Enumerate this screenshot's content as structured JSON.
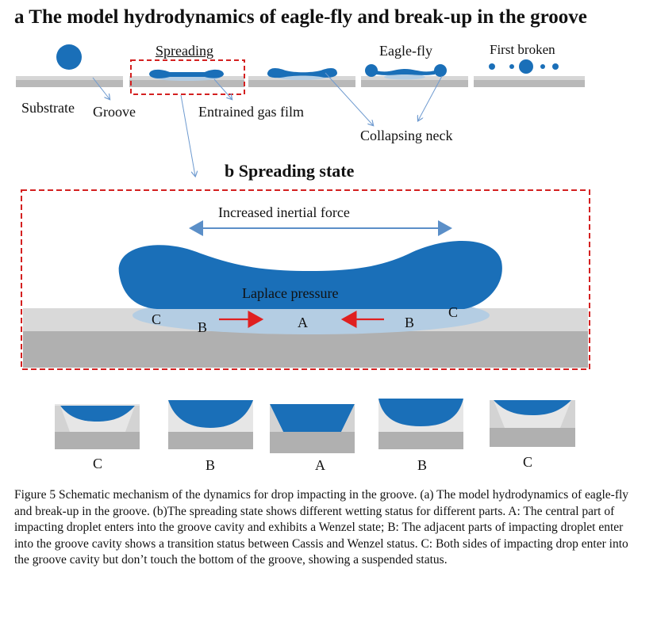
{
  "panel_a": {
    "title": "a  The model hydrodynamics of eagle-fly and break-up in the groove",
    "labels": {
      "spreading": "Spreading",
      "eagle_fly": "Eagle-fly",
      "first_broken": "First broken",
      "substrate": "Substrate",
      "groove": "Groove",
      "entrained_gas_film": "Entrained gas film",
      "collapsing_neck": "Collapsing neck"
    }
  },
  "panel_b": {
    "title": "b  Spreading state",
    "labels": {
      "increased_inertial_force": "Increased inertial force",
      "laplace_pressure": "Laplace pressure",
      "c_left": "C",
      "b_left": "B",
      "a_center": "A",
      "b_right": "B",
      "c_right": "C"
    }
  },
  "states_row": {
    "labels": [
      "C",
      "B",
      "A",
      "B",
      "C"
    ]
  },
  "caption": "Figure 5 Schematic mechanism of the dynamics for drop impacting in the groove. (a)  The model hydrodynamics of eagle-fly and break-up in the groove. (b)The spreading state shows different wetting status for different parts.  A: The central part of impacting droplet enters into the groove cavity and exhibits a Wenzel state; B: The adjacent parts of impacting droplet enter into the groove cavity shows a transition status  between Cassis and Wenzel status.  C: Both sides of impacting drop enter into the groove cavity but don’t touch the bottom of the groove, showing a suspended status.",
  "colors": {
    "drop_blue": "#1a6fb8",
    "gas_light_blue": "#b4cde3",
    "substrate_light": "#d9d9d9",
    "substrate_dark": "#b0b0b0",
    "dash_red": "#d42020",
    "arrow_red": "#e02020",
    "arrow_blue": "#5b8fc8"
  }
}
